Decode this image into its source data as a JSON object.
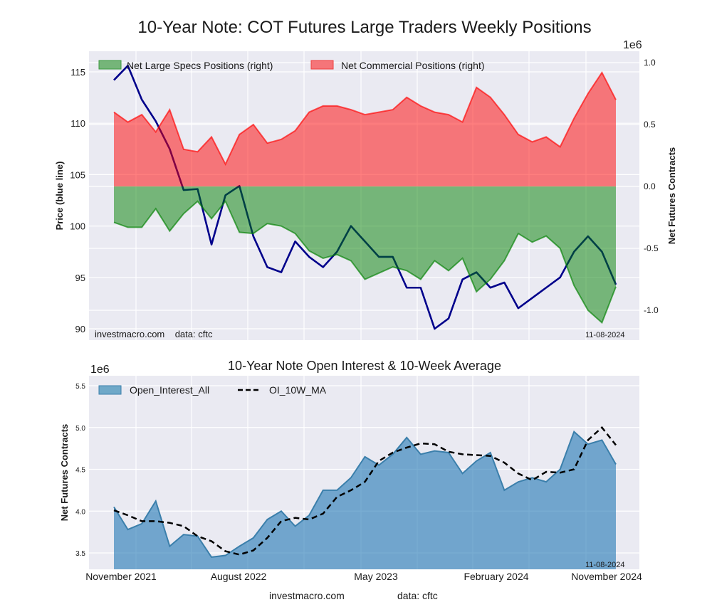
{
  "chart_data": [
    {
      "type": "area",
      "title": "10-Year Note: COT Futures Large Traders Weekly Positions",
      "ylabel_left": "Price (blue line)",
      "ylabel_right": "Net Futures Contracts",
      "right_axis_multiplier": "1e6",
      "ylim_left": [
        89.5,
        116.5
      ],
      "ylim_right": [
        -1.24,
        1.1
      ],
      "yticks_left": [
        "90",
        "95",
        "100",
        "105",
        "110",
        "115"
      ],
      "yticks_right": [
        "-1.0",
        "-0.5",
        "0.0",
        "0.5",
        "1.0"
      ],
      "grid": true,
      "legend_placement": "top-left",
      "footer_source": "investmacro.com    data: cftc",
      "footer_date": "11-08-2024",
      "x": [
        "2021-11",
        "2021-12",
        "2022-01",
        "2022-02",
        "2022-03",
        "2022-04",
        "2022-05",
        "2022-06",
        "2022-07",
        "2022-08",
        "2022-09",
        "2022-10",
        "2022-11",
        "2022-12",
        "2023-01",
        "2023-02",
        "2023-03",
        "2023-04",
        "2023-05",
        "2023-06",
        "2023-07",
        "2023-08",
        "2023-09",
        "2023-10",
        "2023-11",
        "2023-12",
        "2024-01",
        "2024-02",
        "2024-03",
        "2024-04",
        "2024-05",
        "2024-06",
        "2024-07",
        "2024-08",
        "2024-09",
        "2024-10",
        "2024-11"
      ],
      "series": [
        {
          "name": "Net Large Specs Positions (right)",
          "axis": "right",
          "color": "#008000",
          "values": [
            -0.29,
            -0.33,
            -0.33,
            -0.18,
            -0.36,
            -0.22,
            -0.12,
            -0.26,
            -0.12,
            -0.37,
            -0.38,
            -0.3,
            -0.32,
            -0.38,
            -0.52,
            -0.58,
            -0.55,
            -0.6,
            -0.75,
            -0.7,
            -0.65,
            -0.68,
            -0.75,
            -0.6,
            -0.68,
            -0.58,
            -0.85,
            -0.75,
            -0.6,
            -0.38,
            -0.45,
            -0.4,
            -0.5,
            -0.8,
            -1.0,
            -1.1,
            -0.81
          ]
        },
        {
          "name": "Net Commercial Positions (right)",
          "axis": "right",
          "color": "#ff0000",
          "values": [
            0.6,
            0.52,
            0.58,
            0.44,
            0.62,
            0.3,
            0.28,
            0.4,
            0.18,
            0.42,
            0.5,
            0.35,
            0.38,
            0.45,
            0.6,
            0.65,
            0.65,
            0.62,
            0.58,
            0.6,
            0.62,
            0.72,
            0.65,
            0.6,
            0.58,
            0.52,
            0.8,
            0.72,
            0.58,
            0.42,
            0.36,
            0.4,
            0.32,
            0.55,
            0.75,
            0.92,
            0.7
          ]
        },
        {
          "name": "",
          "axis": "left",
          "color": "#00008b",
          "values": [
            114.2,
            115.6,
            112.3,
            110.2,
            107.5,
            103.5,
            103.6,
            98.2,
            103.0,
            103.9,
            99.0,
            96.0,
            95.5,
            98.5,
            97.0,
            96.0,
            97.5,
            100.0,
            98.5,
            97.0,
            97.0,
            94.0,
            94.0,
            90.0,
            91.0,
            94.8,
            95.5,
            94.0,
            94.5,
            92.0,
            93.0,
            94.0,
            95.0,
            97.5,
            99.0,
            97.5,
            94.3
          ]
        }
      ]
    },
    {
      "type": "area",
      "title": "10-Year Note Open Interest & 10-Week Average",
      "ylabel": "Net Futures Contracts",
      "y_multiplier": "1e6",
      "ylim": [
        3.33,
        5.62
      ],
      "yticks": [
        "3.5",
        "4.0",
        "4.5",
        "5.0",
        "5.5"
      ],
      "xticks": [
        "November 2021",
        "August 2022",
        "May 2023",
        "February 2024",
        "November 2024"
      ],
      "grid": true,
      "legend_placement": "top-left",
      "footer_date": "11-08-2024",
      "footer_site": "investmacro.com",
      "footer_data": "data: cftc",
      "x": [
        "2021-11",
        "2021-12",
        "2022-01",
        "2022-02",
        "2022-03",
        "2022-04",
        "2022-05",
        "2022-06",
        "2022-07",
        "2022-08",
        "2022-09",
        "2022-10",
        "2022-11",
        "2022-12",
        "2023-01",
        "2023-02",
        "2023-03",
        "2023-04",
        "2023-05",
        "2023-06",
        "2023-07",
        "2023-08",
        "2023-09",
        "2023-10",
        "2023-11",
        "2023-12",
        "2024-01",
        "2024-02",
        "2024-03",
        "2024-04",
        "2024-05",
        "2024-06",
        "2024-07",
        "2024-08",
        "2024-09",
        "2024-10",
        "2024-11"
      ],
      "series": [
        {
          "name": "Open_Interest_All",
          "color": "#1f77b4",
          "values": [
            4.05,
            3.78,
            3.85,
            4.12,
            3.58,
            3.72,
            3.7,
            3.45,
            3.47,
            3.58,
            3.68,
            3.9,
            4.0,
            3.82,
            3.95,
            4.25,
            4.25,
            4.4,
            4.65,
            4.55,
            4.68,
            4.88,
            4.68,
            4.72,
            4.7,
            4.45,
            4.6,
            4.7,
            4.25,
            4.35,
            4.4,
            4.35,
            4.5,
            4.95,
            4.8,
            4.85,
            4.56
          ]
        },
        {
          "name": "OI_10W_MA",
          "color": "#000000",
          "style": "dashed",
          "values": [
            4.01,
            3.95,
            3.88,
            3.88,
            3.86,
            3.82,
            3.7,
            3.64,
            3.52,
            3.48,
            3.53,
            3.68,
            3.88,
            3.92,
            3.9,
            3.97,
            4.17,
            4.25,
            4.35,
            4.6,
            4.7,
            4.76,
            4.81,
            4.8,
            4.71,
            4.68,
            4.67,
            4.66,
            4.58,
            4.45,
            4.37,
            4.47,
            4.46,
            4.5,
            4.85,
            5.0,
            4.79
          ]
        }
      ]
    }
  ]
}
